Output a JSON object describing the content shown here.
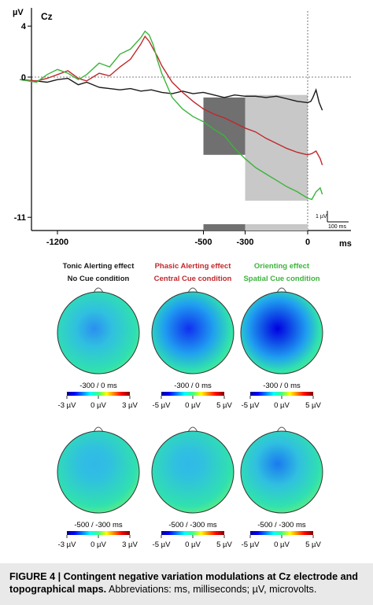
{
  "erp": {
    "channel": "Cz",
    "y_unit": "µV",
    "y_ticks": [
      "4",
      "0",
      "-11"
    ],
    "x_unit": "ms",
    "x_ticks": [
      "-1200",
      "-500",
      "-300",
      "0"
    ],
    "scale_bar_voltage": "1 µV",
    "scale_bar_time": "100 ms"
  },
  "chart_data": {
    "type": "line",
    "x_unit": "ms",
    "y_unit": "µV",
    "xlim": [
      -1350,
      50
    ],
    "ylim": [
      -11,
      4
    ],
    "shaded_windows_ms": [
      [
        -500,
        -300
      ],
      [
        -300,
        0
      ]
    ],
    "series": [
      {
        "name": "No Cue condition",
        "color": "#1a1a1a",
        "x": [
          -1380,
          -1300,
          -1250,
          -1200,
          -1150,
          -1100,
          -1060,
          -1000,
          -950,
          -900,
          -850,
          -800,
          -750,
          -700,
          -650,
          -600,
          -550,
          -500,
          -450,
          -400,
          -350,
          -300,
          -250,
          -200,
          -150,
          -100,
          -50,
          0,
          15,
          25,
          40,
          55,
          70
        ],
        "y": [
          -0.2,
          -0.3,
          -0.4,
          -0.2,
          -0.1,
          -0.6,
          -0.4,
          -0.8,
          -0.9,
          -1.0,
          -0.9,
          -1.1,
          -1.0,
          -1.2,
          -1.3,
          -1.1,
          -1.3,
          -1.2,
          -1.4,
          -1.6,
          -1.4,
          -1.5,
          -1.5,
          -1.6,
          -1.5,
          -1.7,
          -1.9,
          -2.0,
          -1.9,
          -1.6,
          -1.0,
          -2.0,
          -2.6
        ]
      },
      {
        "name": "Central Cue condition",
        "color": "#c0282d",
        "x": [
          -1380,
          -1300,
          -1250,
          -1200,
          -1150,
          -1100,
          -1060,
          -1000,
          -950,
          -900,
          -850,
          -800,
          -780,
          -760,
          -740,
          -720,
          -700,
          -650,
          -600,
          -550,
          -500,
          -450,
          -400,
          -350,
          -300,
          -250,
          -200,
          -150,
          -100,
          -50,
          0,
          20,
          40,
          60,
          70
        ],
        "y": [
          -0.2,
          -0.3,
          -0.1,
          0.2,
          0.5,
          -0.1,
          -0.3,
          0.3,
          0.1,
          0.8,
          1.4,
          2.6,
          3.2,
          2.8,
          2.2,
          1.6,
          0.9,
          -0.4,
          -1.2,
          -1.9,
          -2.5,
          -2.9,
          -3.2,
          -3.6,
          -4.0,
          -4.3,
          -4.8,
          -5.2,
          -5.6,
          -5.9,
          -6.1,
          -6.0,
          -5.8,
          -6.4,
          -6.9
        ]
      },
      {
        "name": "Spatial Cue condition",
        "color": "#3cb43c",
        "x": [
          -1380,
          -1300,
          -1250,
          -1200,
          -1150,
          -1100,
          -1060,
          -1000,
          -950,
          -900,
          -850,
          -800,
          -780,
          -760,
          -740,
          -720,
          -700,
          -650,
          -600,
          -550,
          -500,
          -450,
          -400,
          -350,
          -300,
          -250,
          -200,
          -150,
          -100,
          -50,
          0,
          20,
          40,
          60,
          70
        ],
        "y": [
          -0.2,
          -0.4,
          0.2,
          0.6,
          0.3,
          -0.2,
          0.2,
          1.1,
          0.8,
          1.8,
          2.2,
          3.1,
          3.6,
          3.3,
          2.5,
          1.3,
          0.3,
          -1.6,
          -2.5,
          -3.1,
          -3.5,
          -4.1,
          -4.6,
          -5.6,
          -6.4,
          -7.1,
          -7.6,
          -8.1,
          -8.6,
          -9.0,
          -9.5,
          -9.6,
          -9.0,
          -8.7,
          -9.2
        ]
      }
    ]
  },
  "legends": [
    {
      "effect": "Tonic Alerting effect",
      "effect_color": "#1a1a1a",
      "condition": "No Cue condition",
      "condition_color": "#1a1a1a"
    },
    {
      "effect": "Phasic Alerting effect",
      "effect_color": "#c0282d",
      "condition": "Central Cue condition",
      "condition_color": "#c0282d"
    },
    {
      "effect": "Orienting effect",
      "effect_color": "#3cb43c",
      "condition": "Spatial Cue condition",
      "condition_color": "#3cb43c"
    }
  ],
  "topo_rows": [
    {
      "window": "-300 / 0 ms",
      "maps": [
        {
          "scale_min": "-3 µV",
          "scale_mid": "0 µV",
          "scale_max": "3 µV",
          "activation": 0.35
        },
        {
          "scale_min": "-5 µV",
          "scale_mid": "0 µV",
          "scale_max": "5 µV",
          "activation": 0.75
        },
        {
          "scale_min": "-5 µV",
          "scale_mid": "0 µV",
          "scale_max": "5 µV",
          "activation": 1.0
        }
      ]
    },
    {
      "window": "-500 / -300 ms",
      "maps": [
        {
          "scale_min": "-3 µV",
          "scale_mid": "0 µV",
          "scale_max": "3 µV",
          "activation": 0.2
        },
        {
          "scale_min": "-5 µV",
          "scale_mid": "0 µV",
          "scale_max": "5 µV",
          "activation": 0.1
        },
        {
          "scale_min": "-5 µV",
          "scale_mid": "0 µV",
          "scale_max": "5 µV",
          "activation": 0.55
        }
      ]
    }
  ],
  "caption": {
    "label": "FIGURE 4 | Contingent negative variation modulations at Cz electrode and topographical maps.",
    "text": " Abbreviations: ms, milliseconds; µV, microvolts."
  }
}
